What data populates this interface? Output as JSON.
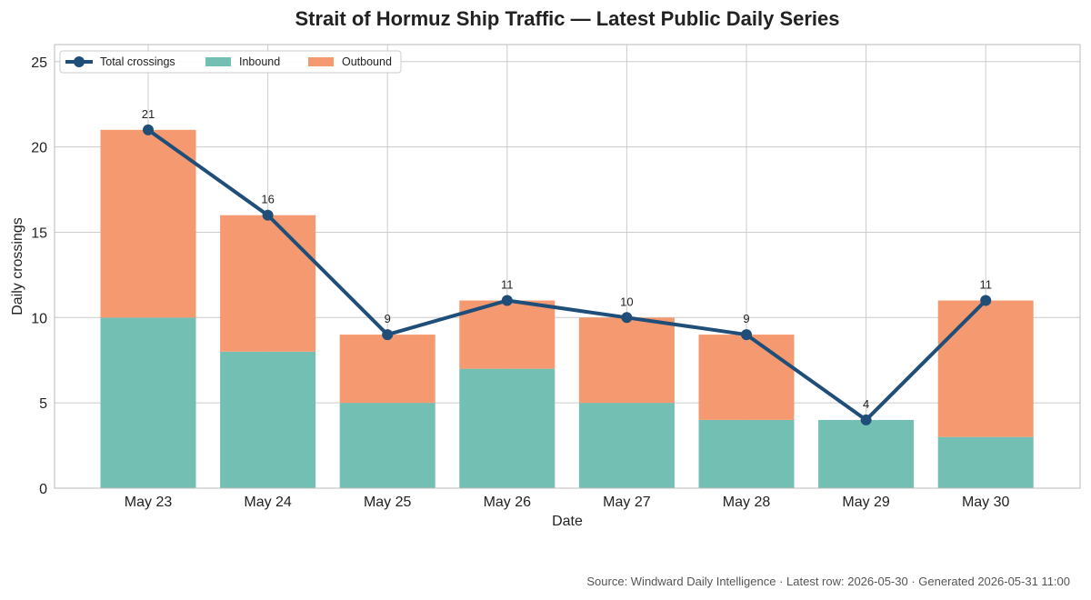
{
  "title": "Strait of Hormuz Ship Traffic — Latest Public Daily Series",
  "source_note": "Source: Windward Daily Intelligence · Latest row: 2026-05-30 · Generated 2026-05-31 11:00",
  "colors": {
    "inbound": "#73bfb4",
    "outbound": "#f59a70",
    "line": "#1f4e79",
    "grid": "#cccccc",
    "axis": "#bbbbbb"
  },
  "chart_data": {
    "type": "bar",
    "stacked": true,
    "categories": [
      "May 23",
      "May 24",
      "May 25",
      "May 26",
      "May 27",
      "May 28",
      "May 29",
      "May 30"
    ],
    "series": [
      {
        "name": "Inbound",
        "type": "bar",
        "values": [
          10,
          8,
          5,
          7,
          5,
          4,
          4,
          3
        ]
      },
      {
        "name": "Outbound",
        "type": "bar",
        "values": [
          11,
          8,
          4,
          4,
          5,
          5,
          0,
          8
        ]
      },
      {
        "name": "Total crossings",
        "type": "line",
        "values": [
          21,
          16,
          9,
          11,
          10,
          9,
          4,
          11
        ]
      }
    ],
    "xlabel": "Date",
    "ylabel": "Daily crossings",
    "ylim": [
      0,
      26
    ],
    "yticks": [
      0,
      5,
      10,
      15,
      20,
      25
    ],
    "grid": true,
    "legend_position": "top-left"
  }
}
